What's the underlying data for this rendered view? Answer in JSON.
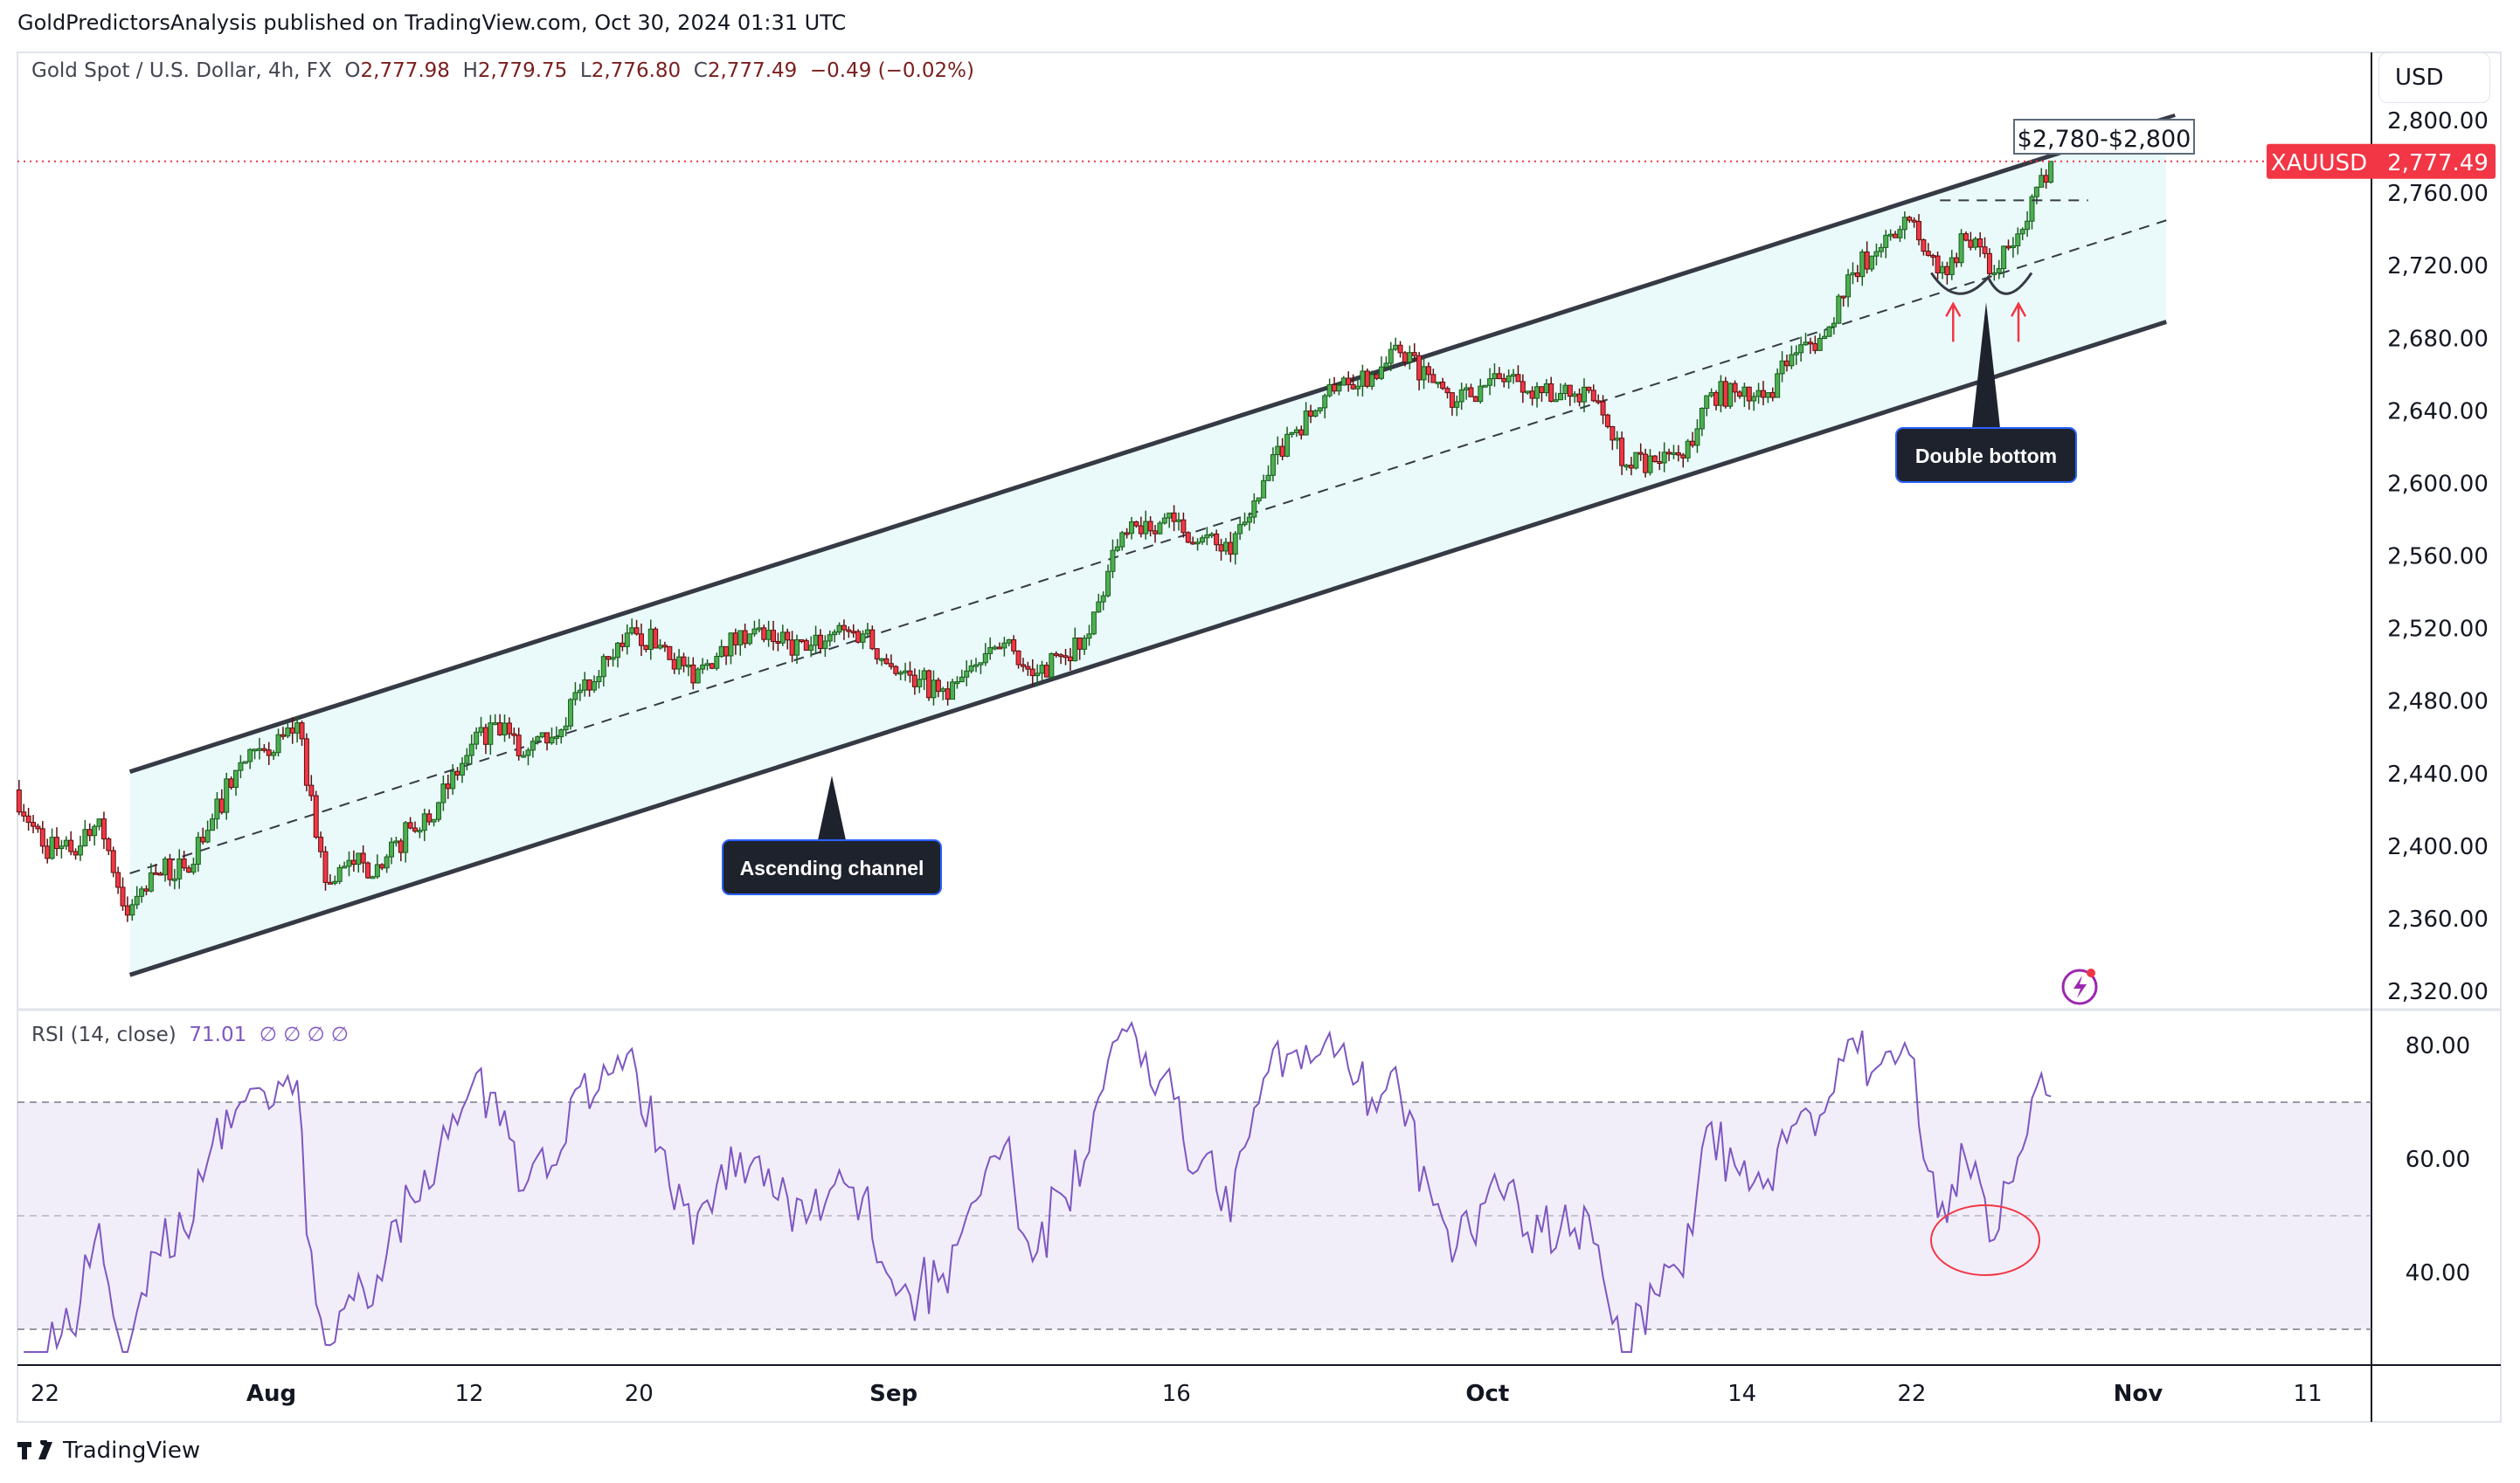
{
  "header": {
    "published": "GoldPredictorsAnalysis published on TradingView.com, Oct 30, 2024 01:31 UTC"
  },
  "legend": {
    "symbol": "Gold Spot / U.S. Dollar, 4h, FX",
    "o_label": "O",
    "open": "2,777.98",
    "h_label": "H",
    "high": "2,779.75",
    "l_label": "L",
    "low": "2,776.80",
    "c_label": "C",
    "close": "2,777.49",
    "change": "−0.49 (−0.02%)"
  },
  "rsi_legend": {
    "label": "RSI (14, close)",
    "value": "71.01",
    "extras": "∅ ∅ ∅ ∅"
  },
  "price_axis": {
    "currency": "USD",
    "ticks": [
      "2,800.00",
      "2,760.00",
      "2,720.00",
      "2,680.00",
      "2,640.00",
      "2,600.00",
      "2,560.00",
      "2,520.00",
      "2,480.00",
      "2,440.00",
      "2,400.00",
      "2,360.00",
      "2,320.00"
    ],
    "last_symbol": "XAUUSD",
    "last_price": "2,777.49"
  },
  "rsi_axis": {
    "ticks": [
      "80.00",
      "60.00",
      "40.00"
    ]
  },
  "time_axis": {
    "ticks": [
      {
        "label": "22",
        "date": "2024-07-22"
      },
      {
        "label": "Aug",
        "date": "2024-08-01"
      },
      {
        "label": "12",
        "date": "2024-08-12"
      },
      {
        "label": "20",
        "date": "2024-08-20"
      },
      {
        "label": "Sep",
        "date": "2024-09-02"
      },
      {
        "label": "16",
        "date": "2024-09-16"
      },
      {
        "label": "Oct",
        "date": "2024-10-01"
      },
      {
        "label": "14",
        "date": "2024-10-14"
      },
      {
        "label": "22",
        "date": "2024-10-22"
      },
      {
        "label": "Nov",
        "date": "2024-11-01"
      },
      {
        "label": "11",
        "date": "2024-11-11"
      }
    ]
  },
  "annotations": {
    "target_box": "$2,780-$2,800",
    "double_bottom": "Double bottom",
    "ascending_channel": "Ascending channel"
  },
  "colors": {
    "up": "#4caf50",
    "down": "#f23645",
    "channel_fill": "#eafafa",
    "rsi_line": "#7e57c2",
    "last_price": "#f23645",
    "callout": "#1e222d"
  },
  "branding": {
    "logo": "TradingView"
  },
  "chart_data": {
    "type": "candlestick",
    "symbol": "XAUUSD",
    "timeframe": "4h",
    "price_range": [
      2320,
      2810
    ],
    "closes": [
      [
        "2024-07-19",
        2431
      ],
      [
        "2024-07-22",
        2400
      ],
      [
        "2024-07-23",
        2397
      ],
      [
        "2024-07-24",
        2415
      ],
      [
        "2024-07-25",
        2362
      ],
      [
        "2024-07-26",
        2385
      ],
      [
        "2024-07-29",
        2388
      ],
      [
        "2024-07-30",
        2415
      ],
      [
        "2024-07-31",
        2446
      ],
      [
        "2024-08-01",
        2450
      ],
      [
        "2024-08-02",
        2468
      ],
      [
        "2024-08-05",
        2380
      ],
      [
        "2024-08-06",
        2390
      ],
      [
        "2024-08-07",
        2388
      ],
      [
        "2024-08-08",
        2410
      ],
      [
        "2024-08-09",
        2424
      ],
      [
        "2024-08-12",
        2450
      ],
      [
        "2024-08-13",
        2468
      ],
      [
        "2024-08-14",
        2450
      ],
      [
        "2024-08-15",
        2460
      ],
      [
        "2024-08-16",
        2486
      ],
      [
        "2024-08-19",
        2503
      ],
      [
        "2024-08-20",
        2517
      ],
      [
        "2024-08-21",
        2510
      ],
      [
        "2024-08-22",
        2490
      ],
      [
        "2024-08-23",
        2510
      ],
      [
        "2024-08-26",
        2517
      ],
      [
        "2024-08-27",
        2512
      ],
      [
        "2024-08-28",
        2508
      ],
      [
        "2024-08-29",
        2518
      ],
      [
        "2024-08-30",
        2517
      ],
      [
        "2024-09-02",
        2499
      ],
      [
        "2024-09-03",
        2492
      ],
      [
        "2024-09-04",
        2481
      ],
      [
        "2024-09-05",
        2500
      ],
      [
        "2024-09-06",
        2512
      ],
      [
        "2024-09-09",
        2494
      ],
      [
        "2024-09-10",
        2505
      ],
      [
        "2024-09-11",
        2517
      ],
      [
        "2024-09-12",
        2565
      ],
      [
        "2024-09-13",
        2579
      ],
      [
        "2024-09-16",
        2579
      ],
      [
        "2024-09-17",
        2570
      ],
      [
        "2024-09-18",
        2561
      ],
      [
        "2024-09-19",
        2592
      ],
      [
        "2024-09-20",
        2627
      ],
      [
        "2024-09-23",
        2640
      ],
      [
        "2024-09-24",
        2658
      ],
      [
        "2024-09-25",
        2660
      ],
      [
        "2024-09-26",
        2672
      ],
      [
        "2024-09-27",
        2660
      ],
      [
        "2024-09-30",
        2645
      ],
      [
        "2024-10-01",
        2654
      ],
      [
        "2024-10-02",
        2660
      ],
      [
        "2024-10-03",
        2650
      ],
      [
        "2024-10-04",
        2648
      ],
      [
        "2024-10-07",
        2645
      ],
      [
        "2024-10-08",
        2610
      ],
      [
        "2024-10-09",
        2612
      ],
      [
        "2024-10-10",
        2614
      ],
      [
        "2024-10-11",
        2650
      ],
      [
        "2024-10-14",
        2648
      ],
      [
        "2024-10-15",
        2650
      ],
      [
        "2024-10-16",
        2672
      ],
      [
        "2024-10-17",
        2681
      ],
      [
        "2024-10-18",
        2716
      ],
      [
        "2024-10-21",
        2730
      ],
      [
        "2024-10-22",
        2745
      ],
      [
        "2024-10-23",
        2716
      ],
      [
        "2024-10-24",
        2734
      ],
      [
        "2024-10-25",
        2716
      ],
      [
        "2024-10-28",
        2740
      ],
      [
        "2024-10-29",
        2777.49
      ]
    ],
    "channel": {
      "start_date": "2024-07-25",
      "end_date": "2024-11-04",
      "upper": [
        2441,
        2801
      ],
      "lower": [
        2329,
        2689
      ]
    },
    "neckline": {
      "price": 2756,
      "from": "2024-10-23",
      "to": "2024-10-29"
    },
    "rsi": {
      "period": 14,
      "overbought": 70,
      "middle": 50,
      "oversold": 30,
      "range": [
        24,
        87
      ],
      "last": 71.01
    }
  }
}
